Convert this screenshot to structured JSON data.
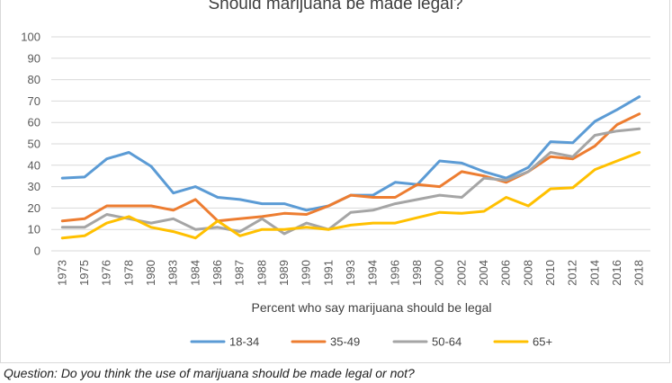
{
  "chart_data": {
    "type": "line",
    "title": "Should marijuana be made legal?",
    "xlabel": "Percent who say marijuana should be legal",
    "ylabel": "",
    "ylim": [
      0,
      100
    ],
    "yticks": [
      0,
      10,
      20,
      30,
      40,
      50,
      60,
      70,
      80,
      90,
      100
    ],
    "grid": "horizontal",
    "legend_position": "bottom",
    "categories": [
      "1973",
      "1975",
      "1976",
      "1978",
      "1980",
      "1983",
      "1984",
      "1986",
      "1987",
      "1988",
      "1989",
      "1990",
      "1991",
      "1993",
      "1994",
      "1996",
      "1998",
      "2000",
      "2002",
      "2004",
      "2006",
      "2008",
      "2010",
      "2012",
      "2014",
      "2016",
      "2018"
    ],
    "series": [
      {
        "name": "18-34",
        "color": "#5B9BD5",
        "values": [
          34,
          34.5,
          43,
          46,
          39.5,
          27,
          30,
          25,
          24,
          22,
          22,
          19,
          21,
          26,
          26,
          32,
          31,
          42,
          41,
          37,
          34,
          39,
          51,
          50.5,
          60.5,
          66,
          72
        ]
      },
      {
        "name": "35-49",
        "color": "#ED7D31",
        "values": [
          14,
          15,
          21,
          21,
          21,
          19,
          24,
          14,
          15,
          16,
          17.5,
          17,
          21,
          26,
          25,
          25,
          31,
          30,
          37,
          35,
          32,
          37,
          44,
          43,
          49,
          59,
          64
        ]
      },
      {
        "name": "50-64",
        "color": "#A5A5A5",
        "values": [
          11,
          11,
          17,
          15,
          13,
          15,
          10,
          11,
          9,
          15,
          8,
          13,
          10,
          18,
          19,
          22,
          24,
          26,
          25,
          34,
          33,
          37,
          46,
          44,
          54,
          56,
          57
        ]
      },
      {
        "name": "65+",
        "color": "#FFC000",
        "values": [
          6,
          7,
          13,
          16,
          11,
          9,
          6,
          14,
          7,
          10,
          10,
          11,
          10,
          12,
          13,
          13,
          15.5,
          18,
          17.5,
          18.5,
          25,
          21,
          29,
          29.5,
          38,
          42,
          46
        ]
      }
    ]
  },
  "caption": "Question: Do you think the use of marijuana should be made legal or not?"
}
